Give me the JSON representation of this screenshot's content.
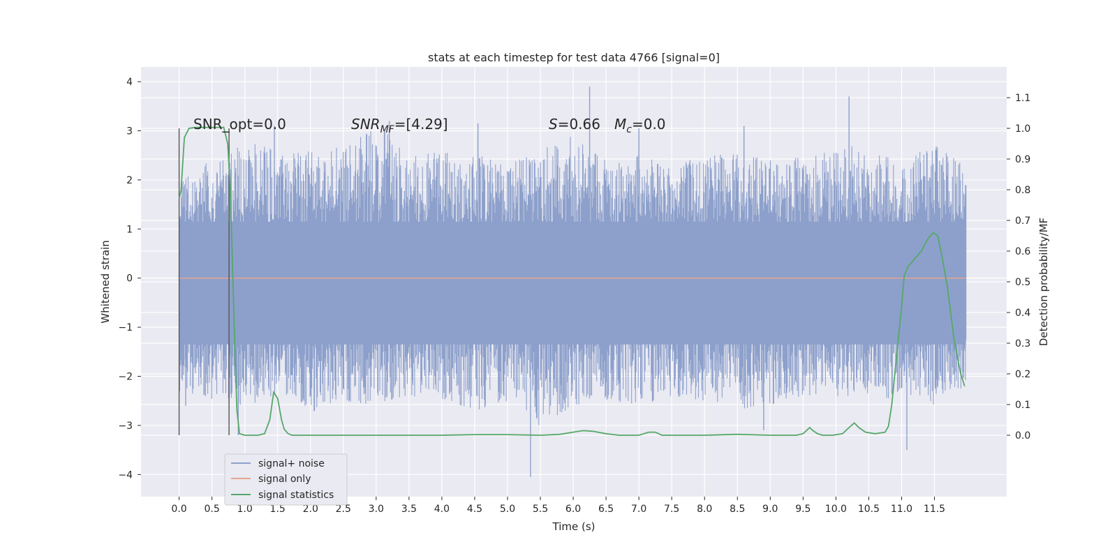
{
  "chart_data": {
    "type": "line",
    "title": "stats at each timestep for test data 4766 [signal=0]",
    "xlabel": "Time (s)",
    "ylabel": "Whitened strain",
    "y2label": "Detection probability/MF",
    "xlim": [
      -0.58,
      12.6
    ],
    "ylim": [
      -4.45,
      4.3
    ],
    "y2lim": [
      -0.2,
      1.2
    ],
    "x_ticks": [
      "0.0",
      "0.5",
      "1.0",
      "1.5",
      "2.0",
      "2.5",
      "3.0",
      "3.5",
      "4.0",
      "4.5",
      "5.0",
      "5.5",
      "6.0",
      "6.5",
      "7.0",
      "7.5",
      "8.0",
      "8.5",
      "9.0",
      "9.5",
      "10.0",
      "10.5",
      "11.0",
      "11.5"
    ],
    "y_ticks": [
      "4",
      "3",
      "2",
      "1",
      "0",
      "−1",
      "−2",
      "−3",
      "−4"
    ],
    "y2_ticks": [
      "1.1",
      "1.0",
      "0.9",
      "0.8",
      "0.7",
      "0.6",
      "0.5",
      "0.4",
      "0.3",
      "0.2",
      "0.1",
      "0.0"
    ],
    "grid": true,
    "legend_position": "lower-left",
    "annotations": {
      "snr_opt": "SNR_opt=0.0",
      "snr_mf_prefix": "SNR",
      "snr_mf_sub": "MF",
      "snr_mf_value": "=[4.29]",
      "s_label": "S",
      "s_value": "=0.66",
      "mc_label": "M",
      "mc_sub": "c",
      "mc_value": "=0.0"
    },
    "window_markers_x": [
      0.0,
      0.76
    ],
    "series": [
      {
        "name": "signal+ noise",
        "color": "#8da0cb",
        "axis": "left",
        "envelope": {
          "x": [
            0.0,
            0.5,
            1.0,
            1.5,
            2.0,
            2.5,
            3.0,
            3.5,
            4.0,
            4.5,
            5.0,
            5.5,
            6.0,
            6.5,
            7.0,
            7.5,
            8.0,
            8.5,
            9.0,
            9.5,
            10.0,
            10.5,
            11.0,
            11.5,
            11.98
          ],
          "upper": [
            2.2,
            2.4,
            2.8,
            2.6,
            2.6,
            2.7,
            3.2,
            2.5,
            2.6,
            2.5,
            2.4,
            2.6,
            2.9,
            2.4,
            2.5,
            2.3,
            2.5,
            2.6,
            2.4,
            2.5,
            2.8,
            2.6,
            2.5,
            2.8,
            2.3
          ],
          "lower": [
            -2.4,
            -2.5,
            -2.6,
            -2.4,
            -2.8,
            -2.5,
            -2.6,
            -2.4,
            -2.5,
            -2.7,
            -2.5,
            -3.1,
            -2.6,
            -2.5,
            -2.6,
            -2.4,
            -2.5,
            -2.7,
            -2.6,
            -2.4,
            -2.5,
            -2.4,
            -2.5,
            -2.6,
            -2.2
          ],
          "peaks": [
            [
              6.25,
              3.9
            ],
            [
              10.2,
              3.7
            ],
            [
              3.2,
              3.2
            ],
            [
              4.55,
              3.15
            ],
            [
              7.0,
              3.05
            ],
            [
              8.6,
              3.1
            ],
            [
              5.35,
              -4.05
            ],
            [
              11.08,
              -3.5
            ],
            [
              0.9,
              -3.2
            ],
            [
              8.9,
              -3.1
            ],
            [
              1.45,
              3.1
            ],
            [
              0.1,
              -2.6
            ]
          ]
        }
      },
      {
        "name": "signal only",
        "color": "#e5a48f",
        "axis": "left",
        "x": [
          0.0,
          11.98
        ],
        "y": [
          0.0,
          0.0
        ]
      },
      {
        "name": "signal statistics",
        "color": "#55a868",
        "axis": "right",
        "x": [
          0.0,
          0.03,
          0.08,
          0.15,
          0.25,
          0.4,
          0.55,
          0.68,
          0.74,
          0.78,
          0.82,
          0.86,
          0.88,
          0.92,
          1.0,
          1.1,
          1.2,
          1.3,
          1.38,
          1.44,
          1.5,
          1.56,
          1.6,
          1.66,
          1.72,
          1.8,
          2.0,
          3.0,
          4.0,
          4.5,
          5.0,
          5.5,
          5.8,
          6.0,
          6.15,
          6.3,
          6.5,
          6.7,
          7.0,
          7.15,
          7.25,
          7.35,
          7.5,
          8.0,
          8.5,
          9.0,
          9.4,
          9.5,
          9.55,
          9.6,
          9.65,
          9.72,
          9.8,
          9.95,
          10.1,
          10.2,
          10.28,
          10.35,
          10.45,
          10.6,
          10.75,
          10.8,
          10.85,
          10.92,
          11.0,
          11.04,
          11.1,
          11.2,
          11.3,
          11.4,
          11.48,
          11.55,
          11.6,
          11.7,
          11.8,
          11.9,
          11.96
        ],
        "y": [
          0.77,
          0.8,
          0.97,
          1.0,
          1.003,
          1.003,
          1.003,
          1.003,
          0.95,
          0.8,
          0.5,
          0.2,
          0.08,
          0.005,
          0.0,
          0.0,
          0.0,
          0.005,
          0.05,
          0.14,
          0.12,
          0.05,
          0.02,
          0.005,
          0.0,
          0.0,
          0.0,
          0.0,
          0.0,
          0.002,
          0.002,
          0.0,
          0.003,
          0.01,
          0.015,
          0.013,
          0.005,
          0.0,
          0.0,
          0.01,
          0.01,
          0.0,
          0.0,
          0.0,
          0.003,
          0.0,
          0.0,
          0.005,
          0.015,
          0.025,
          0.015,
          0.005,
          0.0,
          0.0,
          0.005,
          0.025,
          0.04,
          0.025,
          0.01,
          0.005,
          0.01,
          0.03,
          0.1,
          0.25,
          0.42,
          0.52,
          0.55,
          0.575,
          0.6,
          0.64,
          0.66,
          0.65,
          0.6,
          0.48,
          0.31,
          0.2,
          0.16
        ]
      }
    ]
  }
}
